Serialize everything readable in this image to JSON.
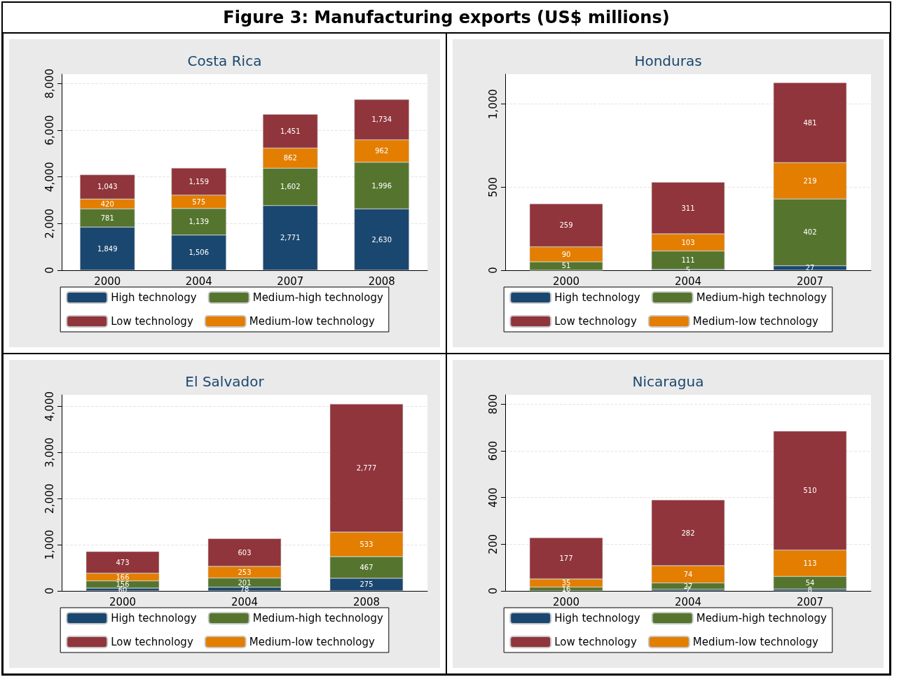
{
  "chart_data": [
    {
      "type": "bar",
      "stacked": true,
      "title": "Costa Rica",
      "annotations": [
        "Figure 3: Manufacturing exports (US$ millions)"
      ],
      "categories": [
        "2000",
        "2004",
        "2007",
        "2008"
      ],
      "ylim": [
        0,
        8400
      ],
      "yticks": [
        0,
        {
          "value": 2000,
          "label": "2,000"
        },
        {
          "value": 4000,
          "label": "4,000"
        },
        {
          "value": 6000,
          "label": "6,000"
        },
        {
          "value": 8000,
          "label": "8,000"
        }
      ],
      "grid": "y",
      "legend": "bottom",
      "data_labels": true,
      "series": [
        {
          "name": "High technology",
          "color": "#1a476f",
          "values": [
            1849,
            1506,
            2771,
            2630
          ],
          "value_labels": [
            "1,849",
            "1,506",
            "2,771",
            "2,630"
          ]
        },
        {
          "name": "Medium-high technology",
          "color": "#55752f",
          "values": [
            781,
            1139,
            1602,
            1996
          ],
          "value_labels": [
            "781",
            "1,139",
            "1,602",
            "1,996"
          ]
        },
        {
          "name": "Medium-low technology",
          "color": "#e37e00",
          "values": [
            420,
            575,
            862,
            962
          ]
        },
        {
          "name": "Low technology",
          "color": "#90353b",
          "values": [
            1043,
            1159,
            1451,
            1734
          ],
          "value_labels": [
            "1,043",
            "1,159",
            "1,451",
            "1,734"
          ]
        }
      ]
    },
    {
      "type": "bar",
      "stacked": true,
      "title": "Honduras",
      "categories": [
        "2000",
        "2004",
        "2007"
      ],
      "ylim": [
        0,
        1180
      ],
      "yticks": [
        0,
        500,
        {
          "value": 1000,
          "label": "1,000"
        }
      ],
      "grid": "y",
      "legend": "bottom",
      "data_labels": true,
      "series": [
        {
          "name": "High technology",
          "color": "#1a476f",
          "values": [
            0,
            5,
            27
          ],
          "value_labels": [
            null,
            "5",
            "27"
          ]
        },
        {
          "name": "Medium-high technology",
          "color": "#55752f",
          "values": [
            51,
            111,
            402
          ]
        },
        {
          "name": "Medium-low technology",
          "color": "#e37e00",
          "values": [
            90,
            103,
            219
          ]
        },
        {
          "name": "Low technology",
          "color": "#90353b",
          "values": [
            259,
            311,
            481
          ]
        }
      ]
    },
    {
      "type": "bar",
      "stacked": true,
      "title": "El Salvador",
      "categories": [
        "2000",
        "2004",
        "2008"
      ],
      "ylim": [
        0,
        4250
      ],
      "yticks": [
        0,
        {
          "value": 1000,
          "label": "1,000"
        },
        {
          "value": 2000,
          "label": "2,000"
        },
        {
          "value": 3000,
          "label": "3,000"
        },
        {
          "value": 4000,
          "label": "4,000"
        }
      ],
      "grid": "y",
      "legend": "bottom",
      "data_labels": true,
      "series": [
        {
          "name": "High technology",
          "color": "#1a476f",
          "values": [
            60,
            78,
            275
          ]
        },
        {
          "name": "Medium-high technology",
          "color": "#55752f",
          "values": [
            156,
            201,
            467
          ]
        },
        {
          "name": "Medium-low technology",
          "color": "#e37e00",
          "values": [
            166,
            253,
            533
          ]
        },
        {
          "name": "Low technology",
          "color": "#90353b",
          "values": [
            473,
            603,
            2777
          ],
          "value_labels": [
            "473",
            "603",
            "2,777"
          ]
        }
      ]
    },
    {
      "type": "bar",
      "stacked": true,
      "title": "Nicaragua",
      "categories": [
        "2000",
        "2004",
        "2007"
      ],
      "ylim": [
        0,
        840
      ],
      "yticks": [
        0,
        200,
        400,
        600,
        800
      ],
      "grid": "y",
      "legend": "bottom",
      "data_labels": true,
      "series": [
        {
          "name": "High technology",
          "color": "#1a476f",
          "values": [
            null,
            7,
            8
          ]
        },
        {
          "name": "Medium-high technology",
          "color": "#55752f",
          "values": [
            16,
            27,
            54
          ]
        },
        {
          "name": "Medium-low technology",
          "color": "#e37e00",
          "values": [
            35,
            74,
            113
          ]
        },
        {
          "name": "Low technology",
          "color": "#90353b",
          "values": [
            177,
            282,
            510
          ]
        }
      ]
    }
  ]
}
